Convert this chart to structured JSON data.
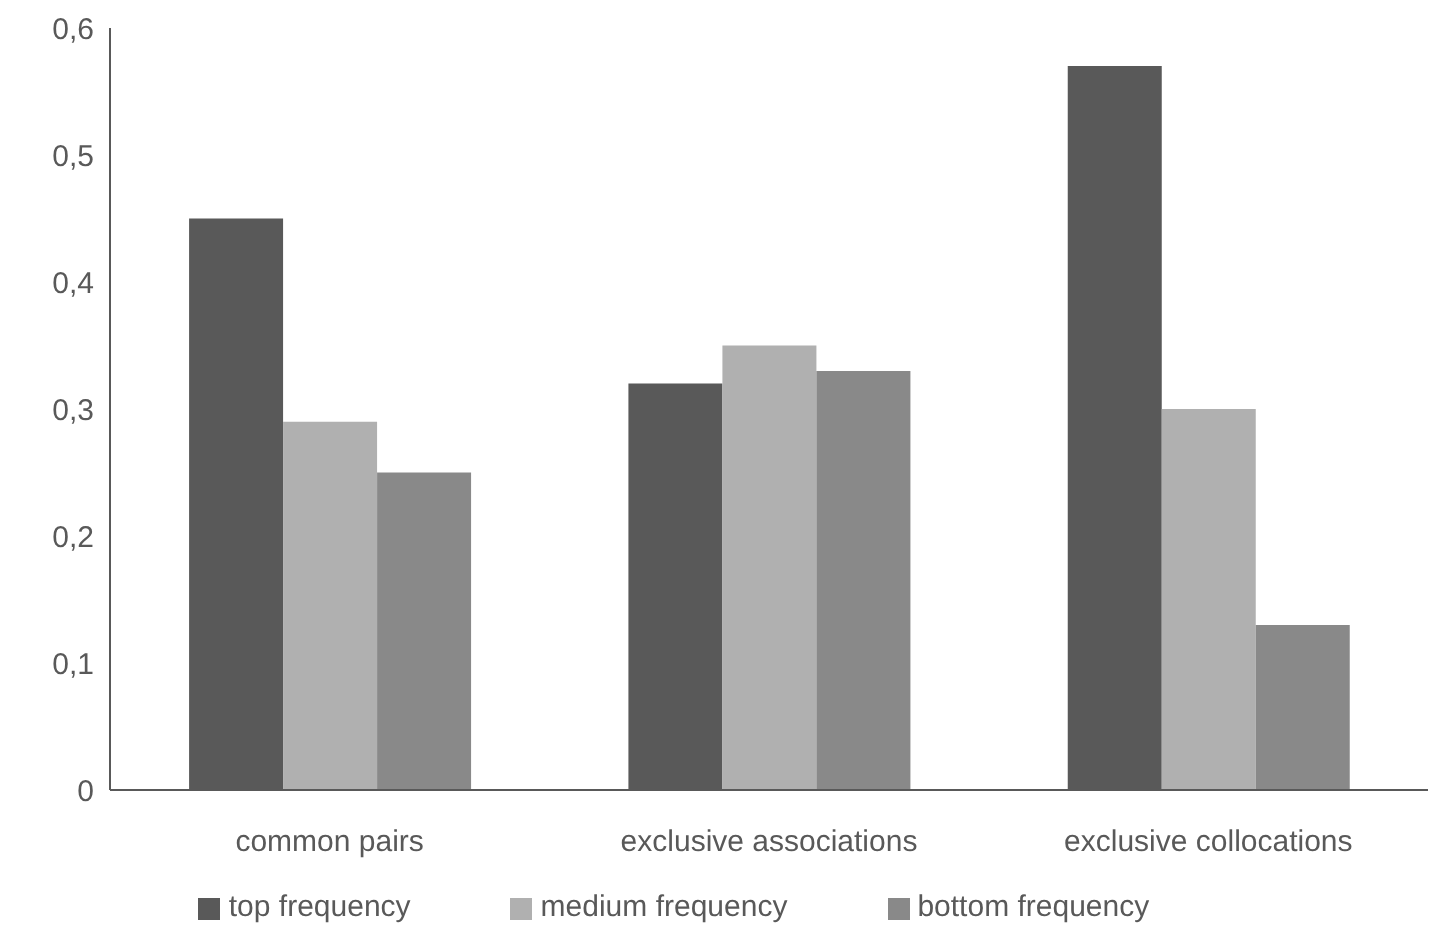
{
  "chart_data": {
    "type": "bar",
    "categories": [
      "common pairs",
      "exclusive associations",
      "exclusive collocations"
    ],
    "series": [
      {
        "name": "top frequency",
        "color": "#595959",
        "values": [
          0.45,
          0.32,
          0.57
        ]
      },
      {
        "name": "medium frequency",
        "color": "#b0b0b0",
        "values": [
          0.29,
          0.35,
          0.3
        ]
      },
      {
        "name": "bottom frequency",
        "color": "#898989",
        "values": [
          0.25,
          0.33,
          0.13
        ]
      }
    ],
    "ylim": [
      0,
      0.6
    ],
    "yticks": [
      0,
      {
        "value": 0.1,
        "label": "0,1"
      },
      {
        "value": 0.2,
        "label": "0,2"
      },
      {
        "value": 0.3,
        "label": "0,3"
      },
      {
        "value": 0.4,
        "label": "0,4"
      },
      {
        "value": 0.5,
        "label": "0,5"
      },
      {
        "value": 0.6,
        "label": "0,6"
      }
    ],
    "grid": false,
    "legend": "bottom"
  }
}
